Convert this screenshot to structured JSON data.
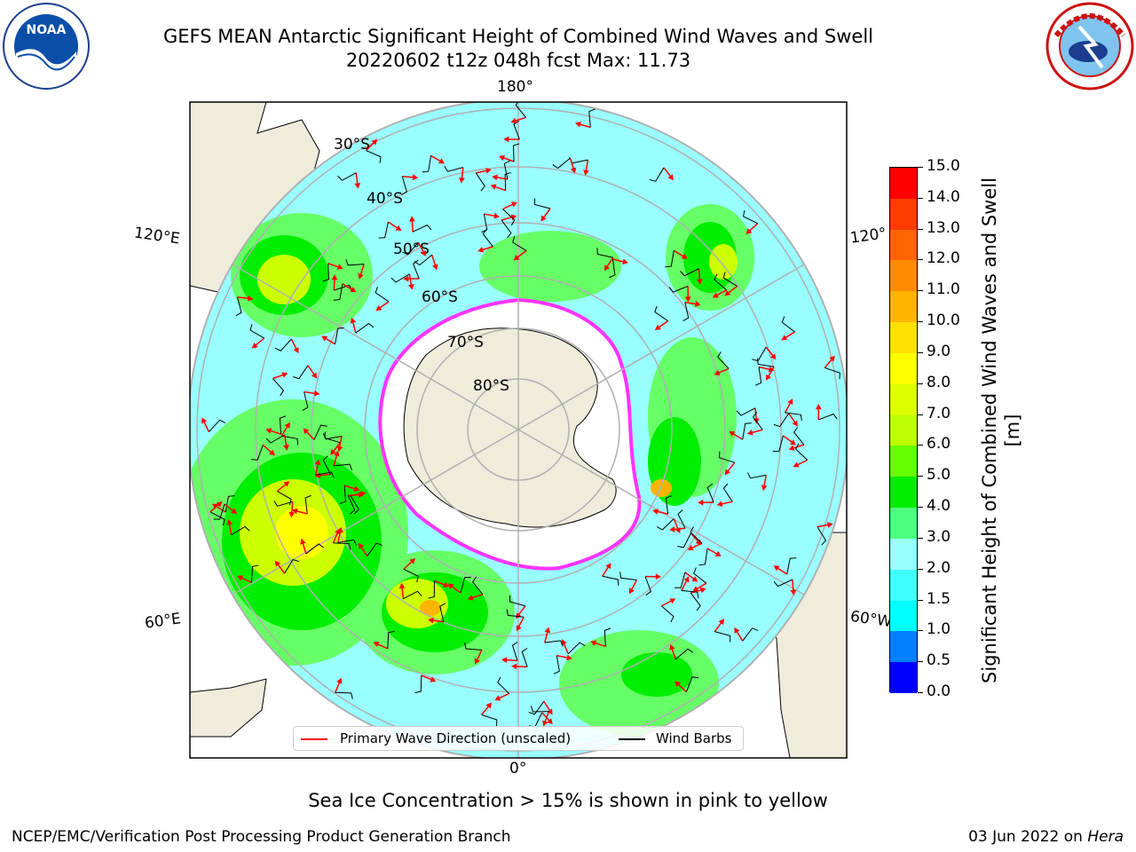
{
  "header": {
    "title_line1": "GEFS MEAN Antarctic Significant Height of Combined Wind Waves and Swell",
    "title_line2": "20220602 t12z 048h fcst   Max: 11.73"
  },
  "logos": {
    "left": "noaa-logo",
    "right": "national-weather-service-logo"
  },
  "map": {
    "projection": "south-polar-stereographic",
    "longitude_labels": {
      "top": "180°",
      "upper_left": "120°E",
      "upper_right": "120°",
      "lower_left": "60°E",
      "lower_right": "60°W",
      "bottom": "0°"
    },
    "latitude_labels": [
      "30°S",
      "40°S",
      "50°S",
      "60°S",
      "70°S",
      "80°S"
    ],
    "land_color": "#efecdc",
    "ocean_palette_note_colors": [
      "#99ffff",
      "#66ff66",
      "#00ee00",
      "#ccff00",
      "#ffff00"
    ],
    "sea_ice_color": "#ffffff",
    "sea_ice_edge_color": "#ff33ff",
    "max_value": 11.73
  },
  "colorbar": {
    "label": "Significant Height of Combined Wind Waves and Swell [m]",
    "ticks": [
      "0.0",
      "0.5",
      "1.0",
      "1.5",
      "2.0",
      "3.0",
      "4.0",
      "5.0",
      "6.0",
      "7.0",
      "8.0",
      "9.0",
      "10.0",
      "11.0",
      "12.0",
      "13.0",
      "14.0",
      "15.0"
    ],
    "colors": [
      "#0000ff",
      "#0080ff",
      "#00ffff",
      "#40ffff",
      "#99ffff",
      "#4cff7f",
      "#00ee00",
      "#66ff00",
      "#bbff00",
      "#ddff00",
      "#ffff00",
      "#ffe000",
      "#ffb400",
      "#ff8c00",
      "#ff6400",
      "#ff3c00",
      "#ff0000"
    ]
  },
  "legend": {
    "item1_label": "Primary Wave Direction (unscaled)",
    "item1_color": "#ff0000",
    "item2_label": "Wind Barbs",
    "item2_color": "#000000"
  },
  "caption": "Sea Ice Concentration > 15% is shown in pink to yellow",
  "footer": {
    "left": "NCEP/EMC/Verification Post Processing Product Generation Branch",
    "date": "03 Jun 2022 on ",
    "machine": "Hera"
  }
}
